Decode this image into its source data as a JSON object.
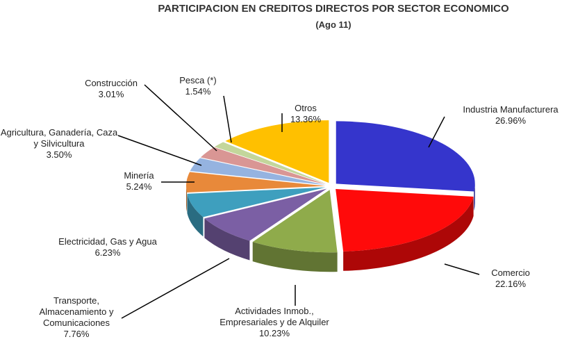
{
  "chart_data": {
    "type": "pie",
    "title": "PARTICIPACION EN CREDITOS DIRECTOS POR SECTOR ECONOMICO",
    "subtitle": "(Ago 11)",
    "categories": [
      "Industria Manufacturera",
      "Comercio",
      "Actividades Inmob., Empresariales y de Alquiler",
      "Transporte, Almacenamiento y Comunicaciones",
      "Electricidad, Gas y Agua",
      "Minería",
      "Agricultura, Ganadería, Caza y Silvicultura",
      "Construcción",
      "Pesca (*)",
      "Otros"
    ],
    "values": [
      26.96,
      22.16,
      10.23,
      7.76,
      6.23,
      5.24,
      3.5,
      3.01,
      1.54,
      13.36
    ],
    "value_labels": [
      "26.96%",
      "22.16%",
      "10.23%",
      "7.76%",
      "6.23%",
      "5.24%",
      "3.50%",
      "3.01%",
      "1.54%",
      "13.36%"
    ],
    "colors": [
      "#3535cc",
      "#ff0a0a",
      "#8fab4b",
      "#7b5fa4",
      "#3e9fbe",
      "#e8893a",
      "#95b3e0",
      "#d99694",
      "#c3d69b",
      "#ffc000"
    ]
  }
}
